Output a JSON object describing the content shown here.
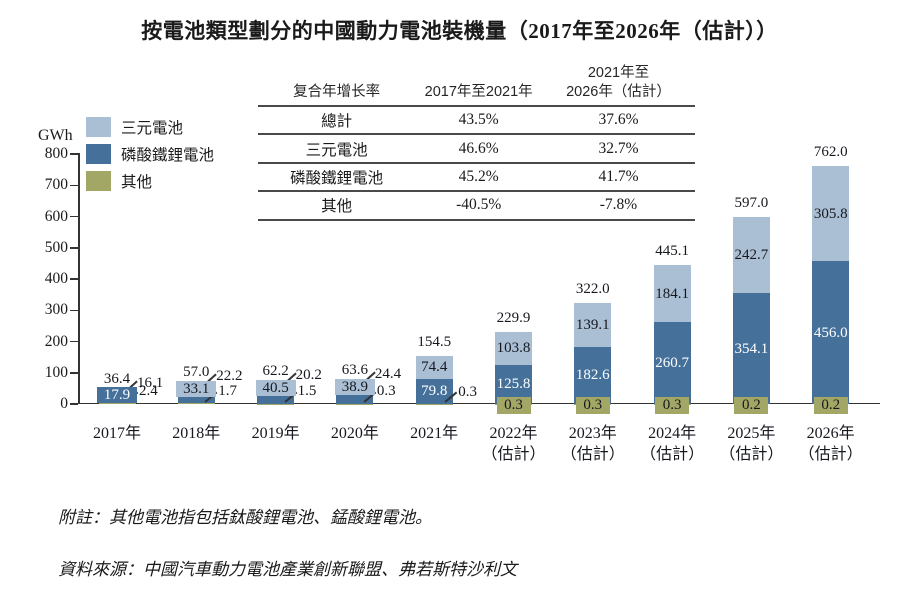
{
  "title": "按電池類型劃分的中國動力電池裝機量（2017年至2026年（估計））",
  "y_axis": {
    "unit": "GWh",
    "min": 0,
    "max": 800,
    "step": 100,
    "tick_labels": [
      "800",
      "700",
      "600",
      "500",
      "400",
      "300",
      "200",
      "100",
      "0"
    ]
  },
  "legend": {
    "items": [
      {
        "key": "ternary",
        "label": "三元電池"
      },
      {
        "key": "lfp",
        "label": "磷酸鐵鋰電池"
      },
      {
        "key": "other",
        "label": "其他"
      }
    ]
  },
  "colors": {
    "ternary": "#aabfd4",
    "lfp": "#44709a",
    "other": "#a3a766",
    "axis": "#333333",
    "label_dark": "#16181f",
    "label_light": "#ffffff"
  },
  "cagr_table": {
    "col_headers": [
      "复合年增长率",
      "2017年至2021年",
      "2021年至\n2026年（估計）"
    ],
    "rows": [
      {
        "label": "總計",
        "v1": "43.5%",
        "v2": "37.6%"
      },
      {
        "label": "三元電池",
        "v1": "46.6%",
        "v2": "32.7%"
      },
      {
        "label": "磷酸鐵鋰電池",
        "v1": "45.2%",
        "v2": "41.7%"
      },
      {
        "label": "其他",
        "v1": "-40.5%",
        "v2": "-7.8%"
      }
    ]
  },
  "chart_data": {
    "type": "bar",
    "stacked": true,
    "unit": "GWh",
    "ylim": [
      0,
      800
    ],
    "legend_position": "top-left",
    "grid": false,
    "categories": [
      "2017年",
      "2018年",
      "2019年",
      "2020年",
      "2021年",
      "2022年\n（估計）",
      "2023年\n（估計）",
      "2024年\n（估計）",
      "2025年\n（估計）",
      "2026年\n（估計）"
    ],
    "series": [
      {
        "name": "三元電池",
        "values": [
          16.1,
          22.2,
          20.2,
          24.4,
          74.4,
          103.8,
          139.1,
          184.1,
          242.7,
          305.8
        ]
      },
      {
        "name": "磷酸鐵鋰電池",
        "values": [
          17.9,
          33.1,
          40.5,
          38.9,
          79.8,
          125.8,
          182.6,
          260.7,
          354.1,
          456.0
        ]
      },
      {
        "name": "其他",
        "values": [
          2.4,
          1.7,
          1.5,
          0.3,
          0.3,
          0.3,
          0.3,
          0.3,
          0.2,
          0.2
        ]
      }
    ],
    "totals": [
      36.4,
      57.0,
      62.2,
      63.6,
      154.5,
      229.9,
      322.0,
      445.1,
      597.0,
      762.0
    ]
  },
  "notes": {
    "note": "附註：其他電池指包括鈦酸鋰電池、錳酸鋰電池。",
    "source": "資料來源：中國汽車動力電池產業創新聯盟、弗若斯特沙利文"
  }
}
